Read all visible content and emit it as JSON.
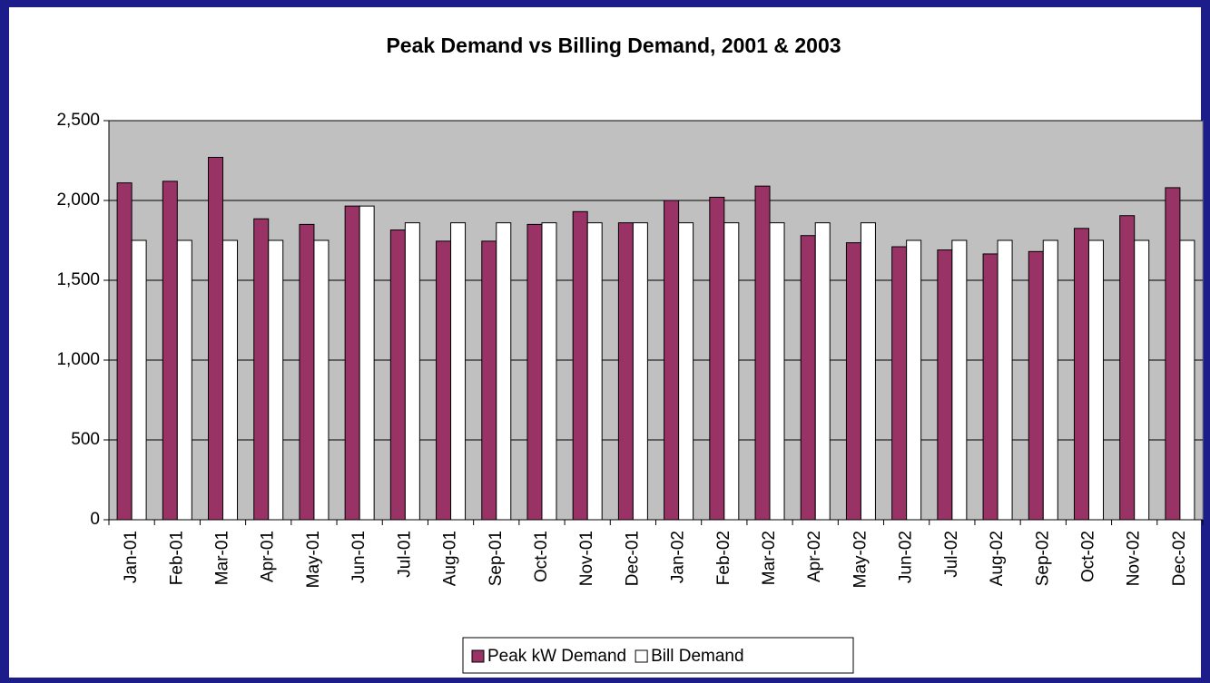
{
  "chart_data": {
    "type": "bar",
    "title": "Peak Demand vs Billing Demand, 2001 & 2003",
    "categories": [
      "Jan-01",
      "Feb-01",
      "Mar-01",
      "Apr-01",
      "May-01",
      "Jun-01",
      "Jul-01",
      "Aug-01",
      "Sep-01",
      "Oct-01",
      "Nov-01",
      "Dec-01",
      "Jan-02",
      "Feb-02",
      "Mar-02",
      "Apr-02",
      "May-02",
      "Jun-02",
      "Jul-02",
      "Aug-02",
      "Sep-02",
      "Oct-02",
      "Nov-02",
      "Dec-02"
    ],
    "series": [
      {
        "name": "Peak kW Demand",
        "color": "#993366",
        "values": [
          2110,
          2120,
          2270,
          1885,
          1850,
          1965,
          1815,
          1745,
          1745,
          1850,
          1930,
          1860,
          2000,
          2020,
          2090,
          1780,
          1735,
          1710,
          1690,
          1665,
          1680,
          1825,
          1905,
          2080
        ]
      },
      {
        "name": "Bill Demand",
        "color": "#ffffff",
        "values": [
          1750,
          1750,
          1750,
          1750,
          1750,
          1965,
          1860,
          1860,
          1860,
          1860,
          1860,
          1860,
          1860,
          1860,
          1860,
          1860,
          1860,
          1750,
          1750,
          1750,
          1750,
          1750,
          1750,
          1750
        ]
      }
    ],
    "ylim": [
      0,
      2500
    ],
    "yticks": [
      0,
      500,
      {
        "value": 1000,
        "label": "1,000"
      },
      {
        "value": 1500,
        "label": "1,500"
      },
      {
        "value": 2000,
        "label": "2,000"
      },
      {
        "value": 2500,
        "label": "2,500"
      }
    ],
    "grid": true,
    "legend": "bottom",
    "plot_background": "#c0c0c0"
  }
}
